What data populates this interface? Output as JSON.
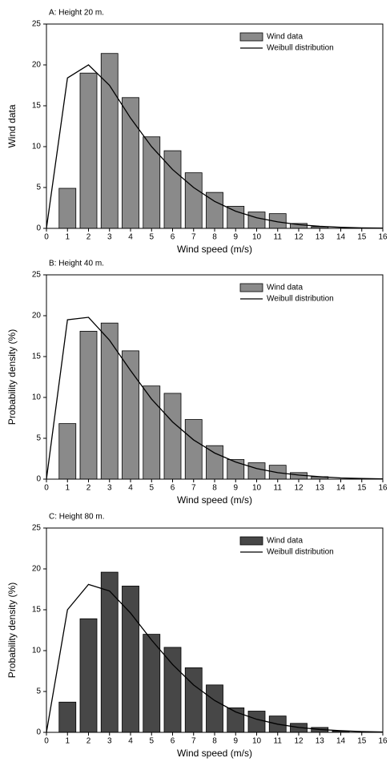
{
  "chart_data": [
    {
      "type": "bar",
      "title": "A: Height 20 m.",
      "xlabel": "Wind speed (m/s)",
      "ylabel": "Wind data",
      "xlim": [
        0,
        16
      ],
      "ylim": [
        0,
        25
      ],
      "xticks": [
        0,
        1,
        2,
        3,
        4,
        5,
        6,
        7,
        8,
        9,
        10,
        11,
        12,
        13,
        14,
        15,
        16
      ],
      "yticks": [
        0,
        5,
        10,
        15,
        20,
        25
      ],
      "series": [
        {
          "name": "Wind data",
          "type": "bar",
          "color": "#8a8a8a",
          "x": [
            1,
            2,
            3,
            4,
            5,
            6,
            7,
            8,
            9,
            10,
            11,
            12,
            13
          ],
          "values": [
            4.9,
            19.0,
            21.4,
            16.0,
            11.2,
            9.5,
            6.8,
            4.4,
            2.7,
            2.0,
            1.8,
            0.6,
            0.2
          ]
        },
        {
          "name": "Weibull distribution",
          "type": "line",
          "color": "#000000",
          "x": [
            0,
            1,
            2,
            3,
            4,
            5,
            6,
            7,
            8,
            9,
            10,
            11,
            12,
            13,
            14,
            15,
            16
          ],
          "values": [
            0,
            18.4,
            20.0,
            17.5,
            13.5,
            10.0,
            7.2,
            5.0,
            3.3,
            2.1,
            1.3,
            0.8,
            0.45,
            0.25,
            0.13,
            0.06,
            0.03
          ]
        }
      ]
    },
    {
      "type": "bar",
      "title": "B: Height 40 m.",
      "xlabel": "Wind speed (m/s)",
      "ylabel": "Probability density (%)",
      "xlim": [
        0,
        16
      ],
      "ylim": [
        0,
        25
      ],
      "xticks": [
        0,
        1,
        2,
        3,
        4,
        5,
        6,
        7,
        8,
        9,
        10,
        11,
        12,
        13,
        14,
        15,
        16
      ],
      "yticks": [
        0,
        5,
        10,
        15,
        20,
        25
      ],
      "series": [
        {
          "name": "Wind data",
          "type": "bar",
          "color": "#8a8a8a",
          "x": [
            1,
            2,
            3,
            4,
            5,
            6,
            7,
            8,
            9,
            10,
            11,
            12,
            13
          ],
          "values": [
            6.8,
            18.1,
            19.1,
            15.7,
            11.4,
            10.5,
            7.3,
            4.1,
            2.4,
            2.0,
            1.7,
            0.8,
            0.3
          ]
        },
        {
          "name": "Weibull distribution",
          "type": "line",
          "color": "#000000",
          "x": [
            0,
            1,
            2,
            3,
            4,
            5,
            6,
            7,
            8,
            9,
            10,
            11,
            12,
            13,
            14,
            15,
            16
          ],
          "values": [
            0,
            19.5,
            19.8,
            17.0,
            13.3,
            9.8,
            7.0,
            4.8,
            3.2,
            2.1,
            1.3,
            0.8,
            0.5,
            0.3,
            0.15,
            0.08,
            0.04
          ]
        }
      ]
    },
    {
      "type": "bar",
      "title": "C: Height 80 m.",
      "xlabel": "Wind speed (m/s)",
      "ylabel": "Probability density (%)",
      "xlim": [
        0,
        16
      ],
      "ylim": [
        0,
        25
      ],
      "xticks": [
        0,
        1,
        2,
        3,
        4,
        5,
        6,
        7,
        8,
        9,
        10,
        11,
        12,
        13,
        14,
        15,
        16
      ],
      "yticks": [
        0,
        5,
        10,
        15,
        20,
        25
      ],
      "series": [
        {
          "name": "Wind data",
          "type": "bar",
          "color": "#474747",
          "x": [
            1,
            2,
            3,
            4,
            5,
            6,
            7,
            8,
            9,
            10,
            11,
            12,
            13,
            14
          ],
          "values": [
            3.7,
            13.9,
            19.6,
            17.9,
            12.0,
            10.4,
            7.9,
            5.8,
            3.0,
            2.6,
            2.0,
            1.1,
            0.6,
            0.15
          ]
        },
        {
          "name": "Weibull distribution",
          "type": "line",
          "color": "#000000",
          "x": [
            0,
            1,
            2,
            3,
            4,
            5,
            6,
            7,
            8,
            9,
            10,
            11,
            12,
            13,
            14,
            15,
            16
          ],
          "values": [
            0,
            15.0,
            18.1,
            17.3,
            14.6,
            11.3,
            8.3,
            5.8,
            3.9,
            2.5,
            1.6,
            1.0,
            0.6,
            0.35,
            0.2,
            0.1,
            0.05
          ]
        }
      ]
    }
  ]
}
